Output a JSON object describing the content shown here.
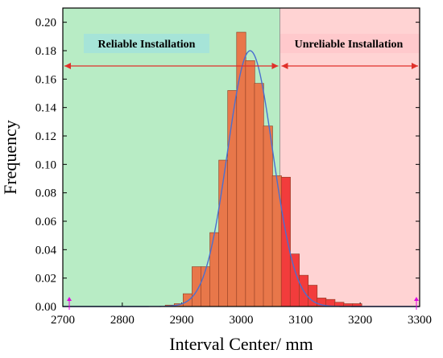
{
  "chart_data": {
    "type": "bar",
    "xlabel": "Interval Center/ mm",
    "ylabel": "Frequency",
    "xlim": [
      2700,
      3300
    ],
    "ylim": [
      0,
      0.21
    ],
    "x_ticks": [
      2700,
      2800,
      2900,
      3000,
      3100,
      3200,
      3300
    ],
    "y_ticks": [
      0.0,
      0.02,
      0.04,
      0.06,
      0.08,
      0.1,
      0.12,
      0.14,
      0.16,
      0.18,
      0.2
    ],
    "threshold_x": 3065,
    "bin_width": 15.5,
    "bins": [
      {
        "x": 2880,
        "value": 0.001
      },
      {
        "x": 2895,
        "value": 0.002
      },
      {
        "x": 2910,
        "value": 0.009
      },
      {
        "x": 2925,
        "value": 0.028
      },
      {
        "x": 2940,
        "value": 0.028
      },
      {
        "x": 2955,
        "value": 0.052
      },
      {
        "x": 2970,
        "value": 0.103
      },
      {
        "x": 2985,
        "value": 0.152
      },
      {
        "x": 3000,
        "value": 0.193
      },
      {
        "x": 3015,
        "value": 0.173
      },
      {
        "x": 3030,
        "value": 0.157
      },
      {
        "x": 3045,
        "value": 0.127
      },
      {
        "x": 3060,
        "value": 0.092
      },
      {
        "x": 3075,
        "value": 0.091
      },
      {
        "x": 3090,
        "value": 0.037
      },
      {
        "x": 3105,
        "value": 0.022
      },
      {
        "x": 3120,
        "value": 0.015
      },
      {
        "x": 3135,
        "value": 0.006
      },
      {
        "x": 3150,
        "value": 0.005
      },
      {
        "x": 3165,
        "value": 0.003
      },
      {
        "x": 3180,
        "value": 0.002
      },
      {
        "x": 3195,
        "value": 0.002
      }
    ],
    "fit_curve": {
      "type": "normal",
      "mean": 3015,
      "sd": 38,
      "peak": 0.18
    },
    "regions": [
      {
        "label": "Reliable Installation",
        "from": 2700,
        "to": 3065,
        "color": "#b8ecc5"
      },
      {
        "label": "Unreliable Installation",
        "from": 3065,
        "to": 3300,
        "color": "#ffd3d3"
      }
    ],
    "colors": {
      "bar_reliable": "#e8774a",
      "bar_unreliable": "#f23c3c",
      "bar_stroke": "#8a3a20",
      "curve": "#4a6fd0",
      "arrow": "#e0302a",
      "label_box": "#a6e4d8",
      "marker": "#e000e0"
    }
  }
}
